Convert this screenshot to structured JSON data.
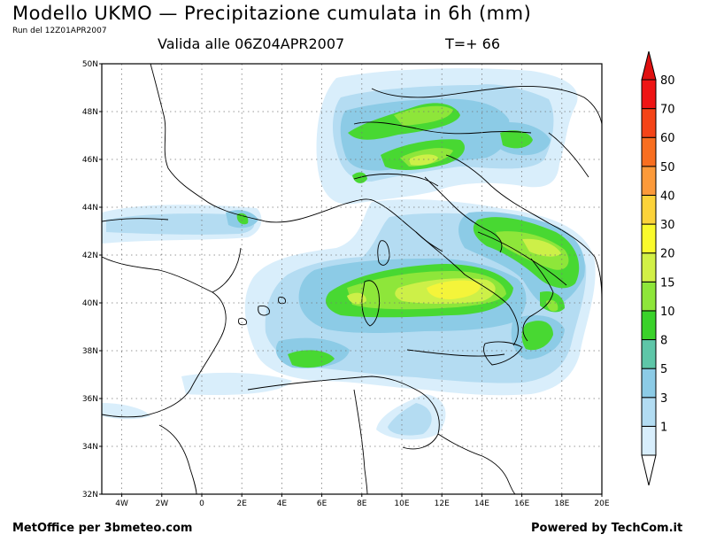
{
  "header": {
    "title": "Modello UKMO — Precipitazione cumulata in 6h (mm)",
    "run": "Run del 12Z01APR2007",
    "valid": "Valida alle 06Z04APR2007",
    "tplus": "T=+ 66"
  },
  "footer": {
    "left": "MetOffice per 3bmeteo.com",
    "right": "Powered by TechCom.it"
  },
  "map": {
    "lat_labels": [
      "50N",
      "48N",
      "46N",
      "44N",
      "42N",
      "40N",
      "38N",
      "36N",
      "34N",
      "32N"
    ],
    "lon_labels": [
      "4W",
      "2W",
      "0",
      "2E",
      "4E",
      "6E",
      "8E",
      "10E",
      "12E",
      "14E",
      "16E",
      "18E",
      "20E"
    ],
    "grid": "dotted",
    "lon_range": [
      -5,
      20
    ],
    "lat_range": [
      32,
      50
    ]
  },
  "legend": {
    "levels": [
      "1",
      "3",
      "5",
      "8",
      "10",
      "15",
      "20",
      "30",
      "40",
      "50",
      "60",
      "70",
      "80"
    ],
    "colors": [
      "#d8eefc",
      "#b2dcf2",
      "#8ccbe6",
      "#5ec6a8",
      "#3ad22a",
      "#8ee63a",
      "#d2f046",
      "#fafa2c",
      "#fcd33a",
      "#fc9a3a",
      "#f86e20",
      "#f44418",
      "#ee1414"
    ]
  },
  "precip_colors": {
    "c1": "#d9eefb",
    "c3": "#b4dcf2",
    "c5": "#8ccbe6",
    "c8": "#5ec6a8",
    "c10": "#48d832",
    "c15": "#8ee63a",
    "c20": "#cdf048",
    "c30": "#f4f43a"
  }
}
